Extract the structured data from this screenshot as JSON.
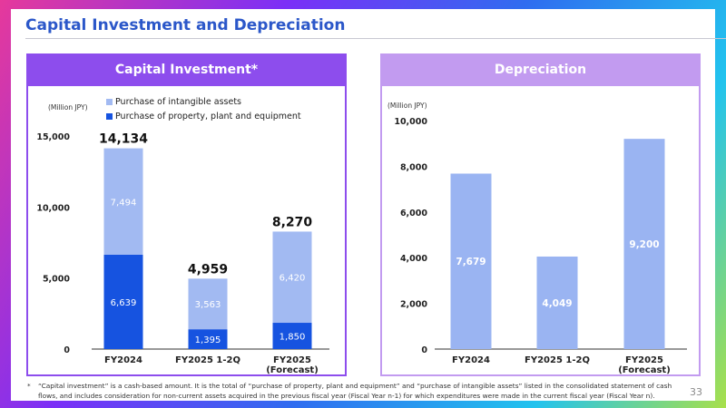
{
  "page": {
    "title": "Capital Investment and Depreciation",
    "page_number": "33",
    "footnote_mark": "*",
    "footnote": "“Capital investment” is a cash-based amount. It is the total of “purchase of property, plant and equipment” and “purchase of intangible assets” listed in the consolidated statement of cash flows, and includes consideration for non-current assets acquired in the previous fiscal year (Fiscal Year n-1) for which expenditures were made in the current fiscal year (Fiscal Year n)."
  },
  "colors": {
    "title_blue": "#2b57c9",
    "capital_header": "#8d4ded",
    "depreciation_header": "#c29bf0",
    "intangible": "#a2baf2",
    "ppe": "#1653e0",
    "depreciation_bar": "#9ab4f2"
  },
  "chart_data": [
    {
      "type": "bar",
      "stacked": true,
      "title": "Capital Investment*",
      "unit_label": "(Million JPY)",
      "categories": [
        "FY2024",
        "FY2025 1-2Q",
        [
          "FY2025",
          "(Forecast)"
        ]
      ],
      "series": [
        {
          "name": "Purchase of property, plant and equipment",
          "values": [
            6639,
            1395,
            1850
          ],
          "labels": [
            "6,639",
            "1,395",
            "1,850"
          ],
          "color": "#1653e0"
        },
        {
          "name": "Purchase of intangible assets",
          "values": [
            7494,
            3563,
            6420
          ],
          "labels": [
            "7,494",
            "3,563",
            "6,420"
          ],
          "color": "#a2baf2"
        }
      ],
      "totals": [
        "14,134",
        "4,959",
        "8,270"
      ],
      "legend_order": [
        "Purchase of intangible assets",
        "Purchase of property, plant and equipment"
      ],
      "legend_position": "top",
      "ylim": [
        0,
        15000
      ],
      "yticks": [
        0,
        5000,
        10000,
        15000
      ],
      "ytick_labels": [
        "0",
        "5,000",
        "10,000",
        "15,000"
      ],
      "grid": false
    },
    {
      "type": "bar",
      "title": "Depreciation",
      "unit_label": "(Million JPY)",
      "categories": [
        "FY2024",
        "FY2025 1-2Q",
        [
          "FY2025",
          "(Forecast)"
        ]
      ],
      "series": [
        {
          "values": [
            7679,
            4049,
            9200
          ],
          "labels": [
            "7,679",
            "4,049",
            "9,200"
          ],
          "color": "#9ab4f2"
        }
      ],
      "ylim": [
        0,
        10000
      ],
      "yticks": [
        0,
        2000,
        4000,
        6000,
        8000,
        10000
      ],
      "ytick_labels": [
        "0",
        "2,000",
        "4,000",
        "6,000",
        "8,000",
        "10,000"
      ],
      "grid": false
    }
  ]
}
